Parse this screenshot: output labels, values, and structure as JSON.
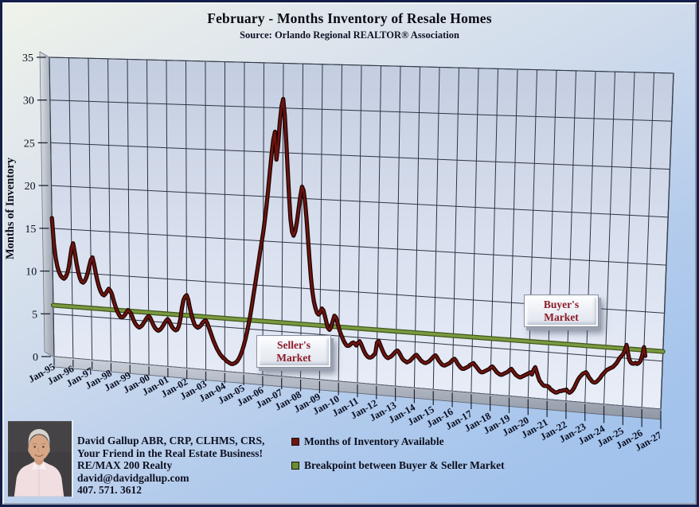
{
  "title": "February - Months Inventory of Resale Homes",
  "subtitle": "Source: Orlando Regional REALTOR® Association",
  "y_axis_title": "Months of Inventory",
  "annotations": {
    "buyers_market_line1": "Buyer's",
    "buyers_market_line2": "Market",
    "sellers_market_line1": "Seller's",
    "sellers_market_line2": "Market"
  },
  "legend": [
    {
      "label": "Months of Inventory Available",
      "color": "#6d1410"
    },
    {
      "label": "Breakpoint between Buyer & Seller Market",
      "color": "#6b8c2f"
    }
  ],
  "contact": {
    "line1": "David Gallup  ABR, CRP, CLHMS, CRS,",
    "line2": "Your Friend in the Real Estate Business!",
    "line3": "RE/MAX 200 Realty",
    "line4": "david@davidgallup.com",
    "line5": "407. 571. 3612"
  },
  "chart_data": {
    "type": "line",
    "title": "February - Months Inventory of Resale Homes",
    "subtitle": "Source: Orlando Regional REALTOR® Association",
    "xlabel": "",
    "ylabel": "Months of Inventory",
    "ylim": [
      0,
      35
    ],
    "yticks": [
      0,
      5,
      10,
      15,
      20,
      25,
      30,
      35
    ],
    "x_tick_labels": [
      "Jan-95",
      "Jan-96",
      "Jan-97",
      "Jan-98",
      "Jan-99",
      "Jan-00",
      "Jan-01",
      "Jan-02",
      "Jan-03",
      "Jan-04",
      "Jan-05",
      "Jan-06",
      "Jan-07",
      "Jan-08",
      "Jan-09",
      "Jan-10",
      "Jan-11",
      "Jan-12",
      "Jan-13",
      "Jan-14",
      "Jan-15",
      "Jan-16",
      "Jan-17",
      "Jan-18",
      "Jan-19",
      "Jan-20",
      "Jan-21",
      "Jan-22",
      "Jan-23",
      "Jan-24",
      "Jan-25",
      "Jan-26",
      "Jan-27"
    ],
    "grid": true,
    "legend_position": "bottom",
    "style": "3d-perspective",
    "series": [
      {
        "name": "Months of Inventory Available",
        "color": "#6d1410",
        "frequency": "monthly",
        "start": "Jan-1995",
        "end": "Feb-2026",
        "values": [
          16.2,
          13.2,
          11.5,
          10.5,
          9.9,
          9.5,
          9.3,
          9.2,
          9.4,
          9.8,
          10.5,
          11.6,
          12.8,
          13.4,
          12.3,
          11.1,
          10.1,
          9.4,
          9.0,
          8.9,
          9.1,
          9.5,
          10.1,
          10.9,
          11.6,
          11.9,
          11.1,
          10.1,
          9.2,
          8.5,
          8.0,
          7.7,
          7.6,
          7.8,
          8.1,
          8.4,
          8.2,
          7.8,
          7.1,
          6.5,
          6.0,
          5.6,
          5.3,
          5.2,
          5.3,
          5.5,
          5.8,
          6.1,
          5.9,
          5.7,
          5.2,
          4.8,
          4.5,
          4.3,
          4.2,
          4.3,
          4.5,
          4.8,
          5.1,
          5.4,
          5.6,
          5.4,
          5.0,
          4.6,
          4.3,
          4.1,
          4.0,
          4.1,
          4.3,
          4.6,
          4.9,
          5.2,
          5.4,
          5.2,
          4.8,
          4.5,
          4.3,
          4.2,
          4.3,
          4.7,
          5.5,
          6.8,
          7.7,
          8.1,
          8.3,
          7.8,
          6.9,
          6.1,
          5.5,
          5.0,
          4.8,
          4.7,
          4.8,
          5.0,
          5.3,
          5.5,
          5.6,
          5.3,
          4.8,
          4.3,
          3.8,
          3.3,
          2.9,
          2.5,
          2.2,
          1.9,
          1.7,
          1.5,
          1.4,
          1.2,
          1.1,
          1.0,
          0.9,
          0.9,
          1.0,
          1.1,
          1.3,
          1.6,
          2.0,
          2.5,
          3.1,
          3.8,
          4.6,
          5.5,
          6.5,
          7.6,
          8.8,
          10.0,
          11.2,
          12.4,
          13.6,
          14.8,
          16.0,
          17.4,
          19.0,
          20.8,
          22.8,
          24.8,
          26.4,
          27.3,
          24.2,
          25.8,
          28.4,
          30.2,
          31.0,
          29.2,
          26.4,
          23.2,
          20.2,
          17.6,
          16.2,
          15.8,
          16.3,
          17.4,
          18.8,
          20.2,
          21.3,
          20.9,
          19.6,
          17.7,
          15.5,
          13.3,
          11.3,
          9.7,
          8.6,
          7.9,
          7.4,
          7.2,
          7.4,
          7.9,
          7.7,
          7.1,
          6.4,
          5.8,
          5.6,
          5.9,
          6.6,
          7.2,
          7.0,
          6.4,
          5.8,
          5.3,
          4.9,
          4.5,
          4.2,
          4.0,
          4.0,
          4.1,
          4.3,
          4.4,
          4.3,
          4.1,
          4.4,
          4.6,
          4.3,
          3.9,
          3.5,
          3.2,
          3.0,
          2.9,
          2.9,
          3.0,
          3.2,
          3.4,
          4.6,
          4.8,
          4.4,
          4.0,
          3.6,
          3.3,
          3.1,
          3.0,
          3.1,
          3.2,
          3.4,
          3.6,
          3.8,
          3.9,
          3.7,
          3.4,
          3.1,
          2.9,
          2.8,
          2.7,
          2.8,
          2.9,
          3.1,
          3.3,
          3.5,
          3.6,
          3.4,
          3.2,
          3.0,
          2.9,
          2.8,
          2.8,
          2.9,
          3.0,
          3.2,
          3.4,
          3.6,
          3.7,
          3.5,
          3.2,
          3.0,
          2.8,
          2.7,
          2.7,
          2.8,
          2.9,
          3.0,
          3.2,
          3.4,
          3.5,
          3.3,
          3.0,
          2.8,
          2.6,
          2.5,
          2.5,
          2.6,
          2.7,
          2.8,
          3.0,
          3.1,
          3.2,
          3.0,
          2.8,
          2.6,
          2.4,
          2.3,
          2.3,
          2.4,
          2.5,
          2.6,
          2.7,
          2.9,
          3.0,
          2.8,
          2.6,
          2.4,
          2.3,
          2.2,
          2.2,
          2.3,
          2.4,
          2.5,
          2.6,
          2.8,
          2.9,
          2.7,
          2.5,
          2.3,
          2.2,
          2.1,
          2.1,
          2.2,
          2.3,
          2.4,
          2.5,
          2.6,
          2.7,
          2.5,
          3.0,
          3.3,
          2.8,
          2.3,
          1.9,
          1.7,
          1.5,
          1.4,
          1.4,
          1.4,
          1.3,
          1.1,
          1.0,
          0.9,
          0.8,
          0.8,
          0.9,
          1.0,
          1.0,
          1.1,
          1.1,
          1.2,
          1.0,
          0.9,
          1.0,
          1.2,
          1.5,
          1.9,
          2.3,
          2.6,
          2.8,
          3.0,
          3.1,
          3.2,
          3.0,
          2.7,
          2.5,
          2.3,
          2.2,
          2.2,
          2.3,
          2.5,
          2.7,
          3.0,
          3.2,
          3.4,
          3.6,
          3.7,
          3.8,
          3.9,
          4.0,
          4.2,
          4.4,
          4.7,
          5.0,
          5.2,
          5.4,
          5.8,
          6.4,
          5.6,
          4.9,
          4.6,
          4.5,
          4.5,
          4.6,
          4.5,
          4.6,
          4.8,
          5.4,
          6.3,
          5.4
        ]
      },
      {
        "name": "Breakpoint between Buyer & Seller Market",
        "color": "#6b8c2f",
        "type": "constant",
        "value": 6
      }
    ]
  }
}
